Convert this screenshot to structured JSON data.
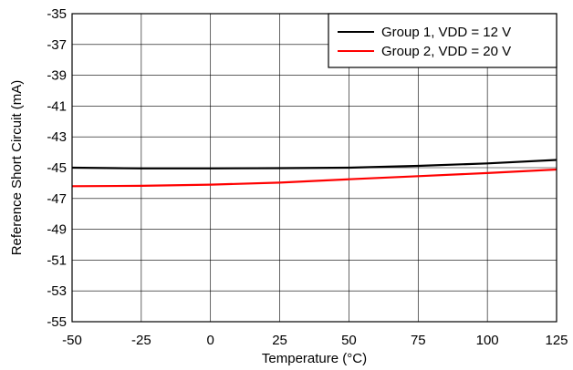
{
  "chart_data": {
    "type": "line",
    "xlabel": "Temperature (°C)",
    "ylabel": "Reference Short Circuit (mA)",
    "xlim": [
      -50,
      125
    ],
    "ylim": [
      -55,
      -35
    ],
    "x_ticks": [
      "-50",
      "-25",
      "0",
      "25",
      "50",
      "75",
      "100",
      "125"
    ],
    "y_ticks": [
      "-35",
      "-37",
      "-39",
      "-41",
      "-43",
      "-45",
      "-47",
      "-49",
      "-51",
      "-53",
      "-55"
    ],
    "grid": true,
    "legend_position": "top-right",
    "series": [
      {
        "name": "Group 1, VDD = 12 V",
        "color": "#000000",
        "x": [
          -50,
          -25,
          0,
          25,
          50,
          75,
          100,
          125
        ],
        "y": [
          -45.0,
          -45.05,
          -45.05,
          -45.03,
          -45.0,
          -44.88,
          -44.72,
          -44.5
        ]
      },
      {
        "name": "Group 2, VDD = 20 V",
        "color": "#ff0000",
        "x": [
          -50,
          -25,
          0,
          25,
          50,
          75,
          100,
          125
        ],
        "y": [
          -46.2,
          -46.18,
          -46.1,
          -45.97,
          -45.75,
          -45.55,
          -45.35,
          -45.12
        ]
      }
    ]
  }
}
